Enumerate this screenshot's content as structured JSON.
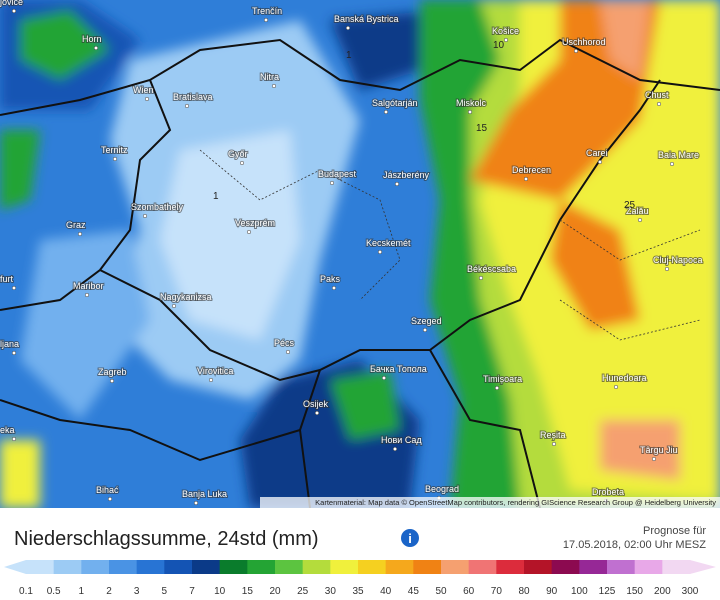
{
  "map": {
    "cities": [
      "jovice",
      "Horn",
      "Trenčín",
      "Banská Bystrica",
      "Košice",
      "Uschhorod",
      "Wien",
      "Bratislava",
      "Nitra",
      "Salgótarján",
      "Miskolc",
      "Chust",
      "Ternitz",
      "Győr",
      "Budapest",
      "Jászberény",
      "Debrecen",
      "Carei",
      "Baia Mare",
      "Szombathely",
      "Veszprém",
      "Zalău",
      "Graz",
      "Kecskemét",
      "Cluj-Napoca",
      "Békéscsaba",
      "furt",
      "Maribor",
      "Nagykanizsa",
      "Paks",
      "Szeged",
      "ljana",
      "Pécs",
      "Zagreb",
      "Virovitica",
      "Бачка Топола",
      "Timișoara",
      "Hunedoara",
      "Osijek",
      "eka",
      "Нови Сад",
      "Reșita",
      "Târgu Jiu",
      "Bihać",
      "Banja Luka",
      "Beograd",
      "Drobeta"
    ],
    "contour_labels": [
      "10",
      "15",
      "1",
      "1",
      "25"
    ],
    "attribution": "Kartenmaterial: Map data © OpenStreetMap contributors, rendering GIScience Research Group @ Heidelberg University"
  },
  "header": {
    "title": "Niederschlagssumme, 24std (mm)",
    "forecast_label": "Prognose für",
    "forecast_time": "17.05.2018, 02:00 Uhr MESZ"
  },
  "legend": {
    "labels": [
      0.1,
      0.5,
      1,
      2,
      3,
      5,
      7,
      10,
      15,
      20,
      25,
      30,
      35,
      40,
      45,
      50,
      60,
      70,
      80,
      90,
      100,
      125,
      150,
      200,
      300
    ],
    "colors": [
      "#c6e2fa",
      "#9ccbf4",
      "#72b0ee",
      "#4a93e4",
      "#2874d4",
      "#1454b4",
      "#0b3a88",
      "#0a7c2c",
      "#24a434",
      "#5cc440",
      "#b4dc3c",
      "#f0f03c",
      "#f5d020",
      "#f5a81c",
      "#f08214",
      "#f5a070",
      "#f07474",
      "#dc2c3c",
      "#b41428",
      "#8c0a50",
      "#962896",
      "#c070d0",
      "#e8a8e8",
      "#f2d8f2"
    ]
  }
}
